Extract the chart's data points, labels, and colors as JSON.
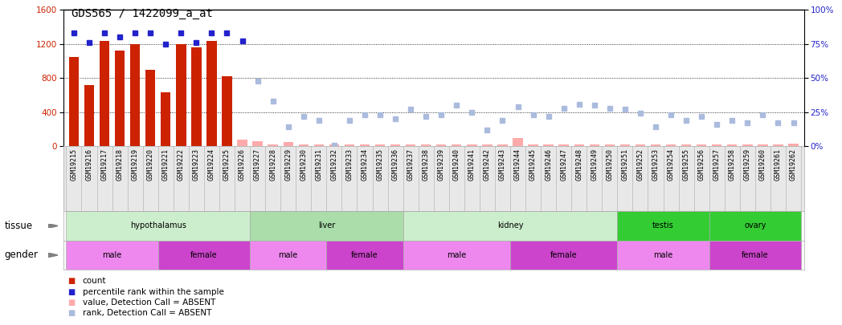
{
  "title": "GDS565 / 1422099_a_at",
  "samples": [
    "GSM19215",
    "GSM19216",
    "GSM19217",
    "GSM19218",
    "GSM19219",
    "GSM19220",
    "GSM19221",
    "GSM19222",
    "GSM19223",
    "GSM19224",
    "GSM19225",
    "GSM19226",
    "GSM19227",
    "GSM19228",
    "GSM19229",
    "GSM19230",
    "GSM19231",
    "GSM19232",
    "GSM19233",
    "GSM19234",
    "GSM19235",
    "GSM19236",
    "GSM19237",
    "GSM19238",
    "GSM19239",
    "GSM19240",
    "GSM19241",
    "GSM19242",
    "GSM19243",
    "GSM19244",
    "GSM19245",
    "GSM19246",
    "GSM19247",
    "GSM19248",
    "GSM19249",
    "GSM19250",
    "GSM19251",
    "GSM19252",
    "GSM19253",
    "GSM19254",
    "GSM19255",
    "GSM19256",
    "GSM19257",
    "GSM19258",
    "GSM19259",
    "GSM19260",
    "GSM19261",
    "GSM19262"
  ],
  "count_values": [
    1050,
    720,
    1230,
    1120,
    1200,
    900,
    630,
    1200,
    1160,
    1230,
    820,
    null,
    null,
    null,
    null,
    null,
    null,
    null,
    null,
    null,
    null,
    null,
    null,
    null,
    null,
    null,
    null,
    null,
    null,
    null,
    null,
    null,
    null,
    null,
    null,
    null,
    null,
    null,
    null,
    null,
    null,
    null,
    null,
    null,
    null,
    null,
    null,
    null
  ],
  "absent_value": [
    null,
    null,
    null,
    null,
    null,
    null,
    null,
    null,
    null,
    null,
    null,
    80,
    60,
    20,
    50,
    20,
    20,
    20,
    20,
    20,
    20,
    20,
    20,
    20,
    20,
    20,
    20,
    20,
    20,
    100,
    20,
    20,
    20,
    20,
    20,
    20,
    20,
    20,
    20,
    20,
    20,
    20,
    20,
    20,
    20,
    20,
    20,
    30
  ],
  "rank_present_pct": [
    83,
    76,
    83,
    80,
    83,
    83,
    75,
    83,
    76,
    83,
    83,
    77,
    null,
    null,
    null,
    null,
    null,
    null,
    null,
    null,
    null,
    null,
    null,
    null,
    null,
    null,
    null,
    null,
    null,
    null,
    null,
    null,
    null,
    null,
    null,
    null,
    null,
    null,
    null,
    null,
    null,
    null,
    null,
    null,
    null,
    null,
    null,
    null
  ],
  "rank_absent_pct": [
    null,
    null,
    null,
    null,
    null,
    null,
    null,
    null,
    null,
    null,
    null,
    null,
    48,
    33,
    14,
    22,
    19,
    1,
    19,
    23,
    23,
    20,
    27,
    22,
    23,
    30,
    25,
    12,
    19,
    29,
    23,
    22,
    28,
    31,
    30,
    28,
    27,
    24,
    14,
    23,
    19,
    22,
    16,
    19,
    17,
    23,
    17,
    17
  ],
  "tissue_groups": [
    {
      "label": "hypothalamus",
      "start": 0,
      "end": 11
    },
    {
      "label": "liver",
      "start": 12,
      "end": 21
    },
    {
      "label": "kidney",
      "start": 22,
      "end": 35
    },
    {
      "label": "testis",
      "start": 36,
      "end": 41
    },
    {
      "label": "ovary",
      "start": 42,
      "end": 47
    }
  ],
  "tissue_colors": {
    "hypothalamus": "#cceecc",
    "liver": "#aaddaa",
    "kidney": "#cceecc",
    "testis": "#33cc33",
    "ovary": "#33cc33"
  },
  "gender_groups": [
    {
      "label": "male",
      "start": 0,
      "end": 5
    },
    {
      "label": "female",
      "start": 6,
      "end": 11
    },
    {
      "label": "male",
      "start": 12,
      "end": 16
    },
    {
      "label": "female",
      "start": 17,
      "end": 21
    },
    {
      "label": "male",
      "start": 22,
      "end": 28
    },
    {
      "label": "female",
      "start": 29,
      "end": 35
    },
    {
      "label": "male",
      "start": 36,
      "end": 41
    },
    {
      "label": "female",
      "start": 42,
      "end": 47
    }
  ],
  "gender_colors": {
    "male": "#ee88ee",
    "female": "#cc44cc"
  },
  "ylim_left": [
    0,
    1600
  ],
  "ylim_right": [
    0,
    100
  ],
  "yticks_left": [
    0,
    400,
    800,
    1200,
    1600
  ],
  "yticks_right": [
    0,
    25,
    50,
    75,
    100
  ],
  "bar_color": "#cc2200",
  "absent_bar_color": "#ffaaaa",
  "rank_present_color": "#2222cc",
  "rank_absent_color": "#aabbdd",
  "grid_color": "#000000",
  "bg_color": "#ffffff",
  "title_fontsize": 10,
  "tick_fontsize": 6.0,
  "label_fontsize": 8.5,
  "legend_fontsize": 7.5
}
